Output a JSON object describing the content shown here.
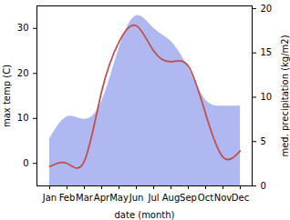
{
  "chart_data": {
    "type": "line",
    "x_label": "date (month)",
    "y_label": "max temp (C)",
    "y2_label": "med. precipitation (kg/m2)",
    "categories": [
      "Jan",
      "Feb",
      "Mar",
      "Apr",
      "May",
      "Jun",
      "Jul",
      "Aug",
      "Sep",
      "Oct",
      "Nov",
      "Dec"
    ],
    "series": [
      {
        "name": "med. precipitation (kg/m2)",
        "type": "area",
        "axis": "y2",
        "color": "#b0b8f2",
        "values": [
          5.3,
          7.8,
          7.5,
          9.5,
          15.5,
          19.2,
          17.8,
          16.3,
          13.3,
          9.7,
          9.0,
          9.0
        ]
      },
      {
        "name": "max temp (C)",
        "type": "line",
        "color": "#c0504d",
        "values": [
          -0.7,
          0.0,
          0.5,
          16.0,
          27.0,
          30.6,
          25.0,
          22.6,
          21.6,
          11.0,
          1.4,
          2.8
        ]
      }
    ],
    "ylim": [
      -5,
      35
    ],
    "yticks": [
      0,
      10,
      20,
      30
    ],
    "y2lim": [
      0,
      20.3
    ],
    "y2ticks": [
      0,
      5,
      10,
      15,
      20
    ],
    "grid": false
  }
}
